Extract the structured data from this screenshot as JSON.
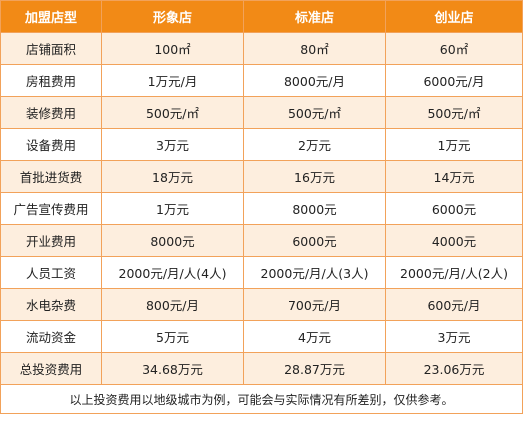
{
  "header": [
    "加盟店型",
    "形象店",
    "标准店",
    "创业店"
  ],
  "rows": [
    {
      "label": "店铺面积",
      "values": [
        "100㎡",
        "80㎡",
        "60㎡"
      ]
    },
    {
      "label": "房租费用",
      "values": [
        "1万元/月",
        "8000元/月",
        "6000元/月"
      ]
    },
    {
      "label": "装修费用",
      "values": [
        "500元/㎡",
        "500元/㎡",
        "500元/㎡"
      ]
    },
    {
      "label": "设备费用",
      "values": [
        "3万元",
        "2万元",
        "1万元"
      ]
    },
    {
      "label": "首批进货费",
      "values": [
        "18万元",
        "16万元",
        "14万元"
      ]
    },
    {
      "label": "广告宣传费用",
      "values": [
        "1万元",
        "8000元",
        "6000元"
      ]
    },
    {
      "label": "开业费用",
      "values": [
        "8000元",
        "6000元",
        "4000元"
      ]
    },
    {
      "label": "人员工资",
      "values": [
        "2000元/月/人(4人)",
        "2000元/月/人(3人)",
        "2000元/月/人(2人)"
      ]
    },
    {
      "label": "水电杂费",
      "values": [
        "800元/月",
        "700元/月",
        "600元/月"
      ]
    },
    {
      "label": "流动资金",
      "values": [
        "5万元",
        "4万元",
        "3万元"
      ]
    },
    {
      "label": "总投资费用",
      "values": [
        "34.68万元",
        "28.87万元",
        "23.06万元"
      ]
    }
  ],
  "footnote": "以上投资费用以地级城市为例，可能会与实际情况有所差别，仅供参考。",
  "colors": {
    "header_bg": "#f28a16",
    "border": "#f2a25a",
    "alt_row_bg": "#fdeede"
  }
}
